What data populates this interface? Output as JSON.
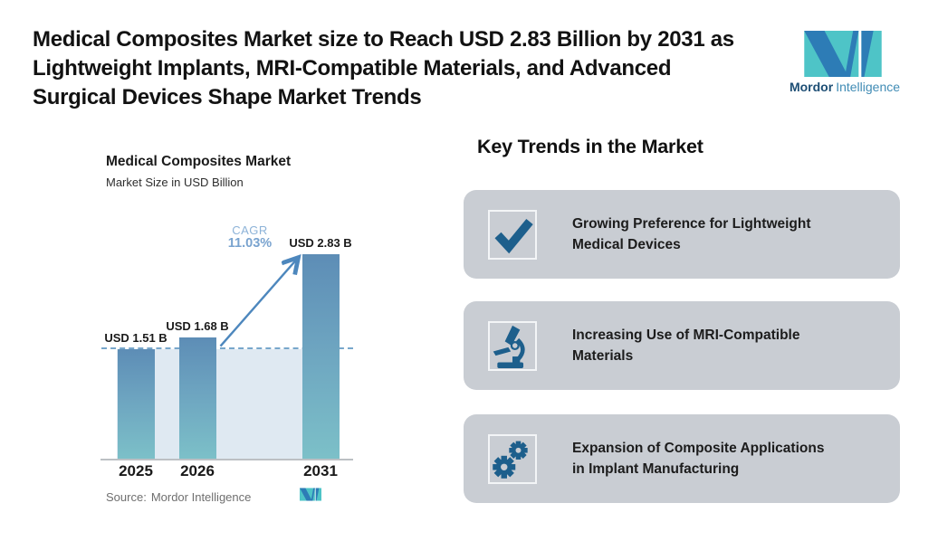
{
  "title_lines": [
    "Medical Composites Market size to Reach USD 2.83 Billion by 2031 as",
    "Lightweight Implants, MRI-Compatible Materials, and Advanced",
    "Surgical Devices Shape Market Trends"
  ],
  "brand": {
    "name_bold": "Mordor",
    "name_light": "Intelligence"
  },
  "chart": {
    "title": "Medical Composites Market",
    "subtitle": "Market Size in USD Billion",
    "cagr_label": "CAGR",
    "cagr_value": "11.03%",
    "source_label": "Source:",
    "source_name": "Mordor Intelligence"
  },
  "chart_data": {
    "type": "bar",
    "title": "Medical Composites Market",
    "ylabel": "Market Size in USD Billion",
    "xlabel": "",
    "categories": [
      "2025",
      "2026",
      "2031"
    ],
    "values": [
      1.51,
      1.68,
      2.83
    ],
    "bar_labels": [
      "USD 1.51 B",
      "USD 1.68 B",
      "USD 2.83 B"
    ],
    "cagr_pct": 11.03,
    "annotations": [
      "CAGR 11.03% growth arrow from 2026 bar to 2031 bar",
      "dashed reference line at 2025 level (1.51)"
    ],
    "legend": "none",
    "grid": "off"
  },
  "trends": {
    "heading": "Key Trends in the Market",
    "items": [
      {
        "icon": "check-icon",
        "text": "Growing Preference for Lightweight Medical Devices",
        "lines": [
          "Growing Preference for Lightweight",
          "Medical Devices"
        ]
      },
      {
        "icon": "microscope-icon",
        "text": "Increasing Use of MRI-Compatible Materials",
        "lines": [
          "Increasing Use of MRI-Compatible",
          "Materials"
        ]
      },
      {
        "icon": "gears-icon",
        "text": "Expansion of Composite Applications in Implant Manufacturing",
        "lines": [
          "Expansion of Composite Applications",
          "in Implant Manufacturing"
        ]
      }
    ]
  },
  "colors": {
    "icon_blue": "#1d5f8c",
    "bar_gradient_top": "#5d8db6",
    "bar_gradient_bottom": "#7cc0c8",
    "band_fill": "#dfe9f2",
    "dashed_line": "#78a7cb",
    "arrow": "#4d87bd",
    "cagr_text": "#79a3cf",
    "card_bg": "#c9cdd3",
    "logo_teal": "#4ec4c7",
    "logo_blue": "#2d7cb6"
  }
}
